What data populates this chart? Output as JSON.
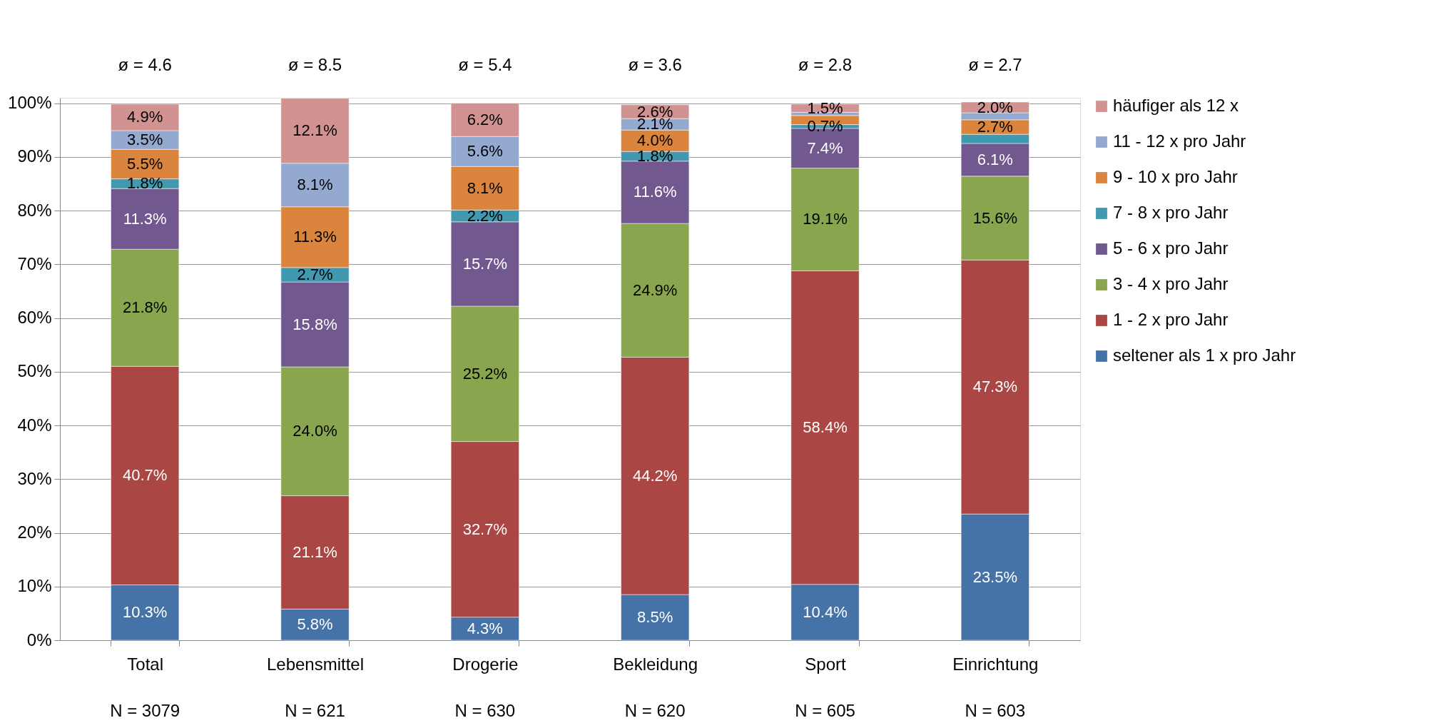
{
  "chart_data": {
    "type": "bar",
    "stacked": true,
    "categories": [
      "Total",
      "Lebensmittel",
      "Drogerie",
      "Bekleidung",
      "Sport",
      "Einrichtung"
    ],
    "series": [
      {
        "name": "seltener als 1 x pro Jahr",
        "color": "#4572a7",
        "values": [
          10.3,
          5.8,
          4.3,
          8.5,
          10.4,
          23.5
        ],
        "value_labels": [
          "10.3%",
          "5.8%",
          "4.3%",
          "8.5%",
          "10.4%",
          "23.5%"
        ]
      },
      {
        "name": "1 - 2 x pro Jahr",
        "color": "#aa4643",
        "values": [
          40.7,
          21.1,
          32.7,
          44.2,
          58.4,
          47.3
        ],
        "value_labels": [
          "40.7%",
          "21.1%",
          "32.7%",
          "44.2%",
          "58.4%",
          "47.3%"
        ]
      },
      {
        "name": "3 - 4 x pro Jahr",
        "color": "#89a54e",
        "values": [
          21.8,
          24.0,
          25.2,
          24.9,
          19.1,
          15.6
        ],
        "value_labels": [
          "21.8%",
          "24.0%",
          "25.2%",
          "24.9%",
          "19.1%",
          "15.6%"
        ]
      },
      {
        "name": "5 - 6 x pro Jahr",
        "color": "#71588f",
        "values": [
          11.3,
          15.8,
          15.7,
          11.6,
          7.4,
          6.1
        ],
        "value_labels": [
          "11.3%",
          "15.8%",
          "15.7%",
          "11.6%",
          "7.4%",
          "6.1%"
        ]
      },
      {
        "name": "7 - 8 x pro Jahr",
        "color": "#4198af",
        "values": [
          1.8,
          2.7,
          2.2,
          1.8,
          0.7,
          1.7
        ],
        "value_labels": [
          "1.8%",
          "2.7%",
          "2.2%",
          "1.8%",
          "0.7%",
          null
        ]
      },
      {
        "name": "9 - 10 x pro Jahr",
        "color": "#db843d",
        "values": [
          5.5,
          11.3,
          8.1,
          4.0,
          1.7,
          2.7
        ],
        "value_labels": [
          "5.5%",
          "11.3%",
          "8.1%",
          "4.0%",
          null,
          "2.7%"
        ]
      },
      {
        "name": "11 - 12 x pro Jahr",
        "color": "#93a9cf",
        "values": [
          3.5,
          8.1,
          5.6,
          2.1,
          0.6,
          1.3
        ],
        "value_labels": [
          "3.5%",
          "8.1%",
          "5.6%",
          "2.1%",
          null,
          null
        ]
      },
      {
        "name": "häufiger als 12 x",
        "color": "#d19392",
        "values": [
          4.9,
          12.1,
          6.2,
          2.6,
          1.5,
          2.0
        ],
        "value_labels": [
          "4.9%",
          "12.1%",
          "6.2%",
          "2.6%",
          "1.5%",
          "2.0%"
        ]
      }
    ],
    "ylim": [
      0,
      101
    ],
    "yticks": [
      {
        "value": 0,
        "label": "0%"
      },
      {
        "value": 10,
        "label": "10%"
      },
      {
        "value": 20,
        "label": "20%"
      },
      {
        "value": 30,
        "label": "30%"
      },
      {
        "value": 40,
        "label": "40%"
      },
      {
        "value": 50,
        "label": "50%"
      },
      {
        "value": 60,
        "label": "60%"
      },
      {
        "value": 70,
        "label": "70%"
      },
      {
        "value": 80,
        "label": "80%"
      },
      {
        "value": 90,
        "label": "90%"
      },
      {
        "value": 100,
        "label": "100%"
      }
    ],
    "grid": "y",
    "legend": "right",
    "annotations": [
      "ø = 4.6",
      "ø = 8.5",
      "ø = 5.4",
      "ø = 3.6",
      "ø = 2.8",
      "ø = 2.7",
      "N = 3079",
      "N = 621",
      "N = 630",
      "N = 620",
      "N = 605",
      "N = 603"
    ]
  }
}
